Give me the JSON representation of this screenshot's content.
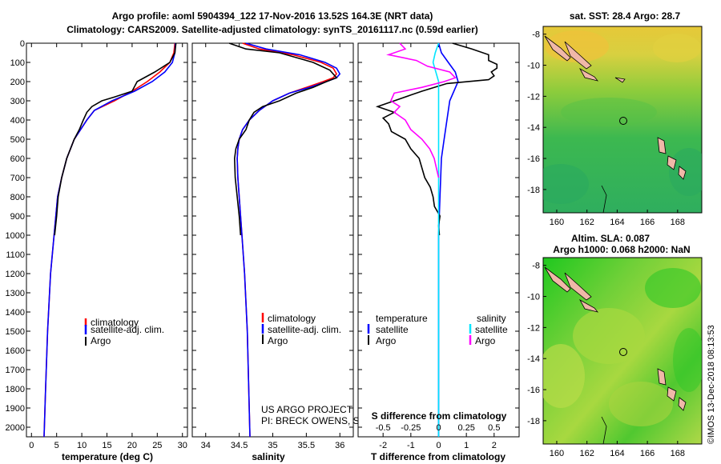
{
  "title": {
    "line1": "Argo profile: aoml 5904394_122 17-Nov-2016 13.52S 164.3E (NRT data)",
    "line2": "Climatology: CARS2009. Satellite-adjusted climatology: synTS_20161117.nc (0.59d earlier)"
  },
  "colors": {
    "climatology": "#ff0000",
    "satellite": "#0000ff",
    "argo": "#000000",
    "salinity_satellite": "#00e5ff",
    "salinity_argo": "#ff00ff"
  },
  "legend": {
    "climatology": "climatology",
    "satellite": "satellite-adj. clim.",
    "argo": "Argo"
  },
  "legend3": {
    "temp_head": "temperature",
    "sal_head": "salinity",
    "satellite": "satellite",
    "argo": "Argo"
  },
  "credit": {
    "line1": "US ARGO PROJECT",
    "line2": "PI: BRECK OWENS, STEVE JAYNE, P.E. ROBBINS"
  },
  "map1": {
    "title": "sat. SST: 28.4 Argo: 28.7",
    "colors": {
      "warm": "#e8d040",
      "mid": "#8ccc3c",
      "cool": "#2fb25a"
    }
  },
  "map2": {
    "title1": "Altim. SLA: 0.087",
    "title2": "Argo h1000: 0.068 h2000: NaN"
  },
  "map_axes": {
    "lat_ticks": [
      -8,
      -10,
      -12,
      -14,
      -16,
      -18
    ],
    "lon_ticks": [
      160,
      162,
      164,
      166,
      168
    ],
    "argo_position": {
      "lon": 164.3,
      "lat": -13.52
    }
  },
  "watermark": "©IMOS 13-Dec-2018 08:13:53",
  "chart_data": [
    {
      "type": "line",
      "title": "",
      "xlabel": "temperature (deg C)",
      "ylabel": "",
      "xlim": [
        -1,
        31
      ],
      "ylim": [
        2050,
        0
      ],
      "xticks": [
        0,
        5,
        10,
        15,
        20,
        25,
        30
      ],
      "yticks": [
        0,
        100,
        200,
        300,
        400,
        500,
        600,
        700,
        800,
        900,
        1000,
        1100,
        1200,
        1300,
        1400,
        1500,
        1600,
        1700,
        1800,
        1900,
        2000
      ],
      "series": [
        {
          "name": "climatology",
          "color": "#ff0000",
          "depth": [
            0,
            50,
            100,
            150,
            200,
            250,
            300,
            350,
            400,
            500,
            600,
            700,
            800,
            1000,
            1200,
            1500,
            1800,
            2050
          ],
          "values": [
            28.5,
            28.3,
            27.5,
            25.5,
            23,
            20,
            16.5,
            12.5,
            11,
            8.5,
            7,
            6,
            5.2,
            4.5,
            3.8,
            3.2,
            2.8,
            2.5
          ]
        },
        {
          "name": "satellite-adj. clim.",
          "color": "#0000ff",
          "depth": [
            0,
            50,
            100,
            150,
            200,
            250,
            300,
            350,
            400,
            500,
            600,
            700,
            800,
            1000,
            1200,
            1500,
            1800,
            2050
          ],
          "values": [
            28.6,
            28.5,
            28,
            26.5,
            24,
            20.5,
            16,
            12.5,
            11,
            8.5,
            7,
            6,
            5.2,
            4.5,
            3.8,
            3.2,
            2.8,
            2.5
          ]
        },
        {
          "name": "Argo",
          "color": "#000000",
          "depth": [
            0,
            50,
            100,
            150,
            200,
            250,
            280,
            300,
            330,
            360,
            400,
            450,
            500,
            600,
            700,
            800,
            900,
            1000
          ],
          "values": [
            28.7,
            28.5,
            27.5,
            24.5,
            21,
            20,
            16.5,
            14,
            12,
            11,
            10.3,
            9.5,
            8.5,
            7,
            6,
            5.3,
            5,
            4.6
          ]
        }
      ]
    },
    {
      "type": "line",
      "xlabel": "salinity",
      "xlim": [
        33.8,
        36.2
      ],
      "ylim": [
        2050,
        0
      ],
      "xticks": [
        34,
        34.5,
        35,
        35.5,
        36
      ],
      "series": [
        {
          "name": "climatology",
          "color": "#ff0000",
          "depth": [
            0,
            30,
            60,
            100,
            130,
            160,
            180,
            200,
            230,
            260,
            300,
            350,
            400,
            450,
            500,
            550,
            600,
            700,
            800,
            1000,
            1200,
            1500,
            2050
          ],
          "values": [
            34.55,
            34.8,
            35.3,
            35.72,
            35.9,
            35.95,
            35.9,
            35.75,
            35.5,
            35.25,
            35,
            34.8,
            34.65,
            34.55,
            34.5,
            34.48,
            34.47,
            34.48,
            34.5,
            34.54,
            34.58,
            34.62,
            34.66
          ]
        },
        {
          "name": "satellite-adj. clim.",
          "color": "#0000ff",
          "depth": [
            0,
            30,
            60,
            100,
            130,
            160,
            180,
            200,
            230,
            260,
            300,
            350,
            400,
            450,
            500,
            550,
            600,
            700,
            800,
            1000,
            1200,
            1500,
            2050
          ],
          "values": [
            34.6,
            34.9,
            35.4,
            35.78,
            35.95,
            36,
            35.95,
            35.8,
            35.55,
            35.25,
            35,
            34.8,
            34.65,
            34.55,
            34.5,
            34.48,
            34.47,
            34.48,
            34.5,
            34.54,
            34.58,
            34.62,
            34.66
          ]
        },
        {
          "name": "Argo",
          "color": "#000000",
          "depth": [
            0,
            30,
            50,
            100,
            140,
            180,
            200,
            230,
            260,
            300,
            330,
            360,
            400,
            450,
            500,
            550,
            600,
            700,
            800,
            900,
            1000
          ],
          "values": [
            34.35,
            34.6,
            35.1,
            35.6,
            35.85,
            35.95,
            35.8,
            35.6,
            35.35,
            35.1,
            34.85,
            34.72,
            34.65,
            34.6,
            34.5,
            34.45,
            34.43,
            34.44,
            34.47,
            34.5,
            34.52
          ]
        }
      ]
    },
    {
      "type": "line",
      "xlabel": "T difference from climatology",
      "xlabel_top": "S difference from climatology",
      "xlim": [
        -2.9,
        2.9
      ],
      "ylim": [
        2050,
        0
      ],
      "xticks": [
        -2,
        -1,
        0,
        1,
        2
      ],
      "xticks_s": [
        -0.5,
        -0.25,
        0,
        0.25,
        0.5
      ],
      "series": [
        {
          "name": "temperature satellite",
          "color": "#0000ff",
          "depth": [
            0,
            50,
            100,
            150,
            200,
            250,
            300,
            400,
            500,
            600,
            800,
            1000,
            1500,
            2050
          ],
          "values": [
            0,
            0.1,
            0.35,
            0.6,
            0.7,
            0.55,
            0.4,
            0.3,
            0.2,
            0.1,
            0.05,
            0,
            0,
            0
          ]
        },
        {
          "name": "temperature Argo",
          "color": "#000000",
          "depth": [
            0,
            30,
            60,
            90,
            110,
            130,
            150,
            170,
            190,
            210,
            250,
            270,
            290,
            330,
            360,
            390,
            420,
            460,
            500,
            550,
            600,
            650,
            700,
            750,
            800,
            850,
            900,
            950,
            1000
          ],
          "values": [
            0.5,
            1.2,
            1.8,
            1.8,
            2.1,
            2.1,
            1.9,
            2.0,
            1.8,
            0.3,
            -0.6,
            -1.0,
            -1.4,
            -2.2,
            -1.6,
            -2.0,
            -1.8,
            -1.7,
            -1.2,
            -1.0,
            -0.7,
            -0.6,
            -0.5,
            -0.3,
            -0.2,
            -0.15,
            0.05,
            0,
            0.03
          ]
        },
        {
          "name": "salinity satellite",
          "color": "#00e5ff",
          "depth": [
            0,
            50,
            100,
            200,
            300,
            500,
            1000,
            2050
          ],
          "values": [
            0,
            -0.03,
            -0.05,
            0,
            0,
            0,
            0,
            0
          ]
        },
        {
          "name": "salinity Argo",
          "color": "#ff00ff",
          "depth": [
            0,
            30,
            60,
            90,
            120,
            150,
            180,
            200,
            230,
            260,
            300,
            330,
            360,
            400,
            450,
            500,
            550,
            600,
            650,
            700
          ],
          "values": [
            -0.35,
            -0.3,
            -0.45,
            -0.2,
            -0.1,
            0.1,
            0.15,
            0.05,
            -0.15,
            -0.4,
            -0.43,
            -0.35,
            -0.4,
            -0.3,
            -0.25,
            -0.15,
            -0.08,
            -0.04,
            -0.02,
            0
          ]
        }
      ]
    }
  ]
}
